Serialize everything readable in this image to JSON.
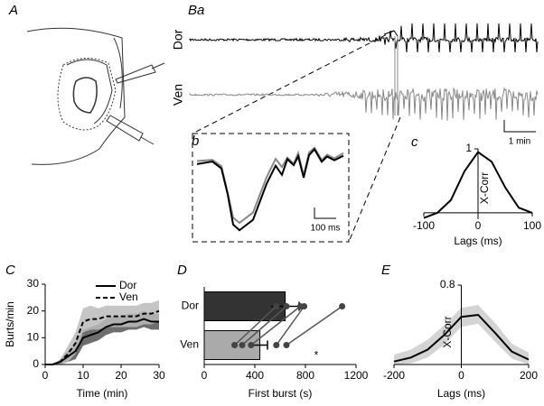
{
  "labels": {
    "panel_a": "A",
    "panel_ba": "Ba",
    "dor": "Dor",
    "ven": "Ven",
    "scale_min": "1 min",
    "panel_b": "b",
    "scale_ms": "100 ms"
  },
  "chart_data": [
    {
      "type": "line",
      "panel": "c",
      "x_label": "Lags (ms)",
      "y_label": "X-Corr",
      "x": [
        -100,
        -75,
        -50,
        -25,
        0,
        25,
        50,
        75,
        100
      ],
      "series": [
        {
          "color": "#000000",
          "values": [
            -0.08,
            0.0,
            0.2,
            0.65,
            0.95,
            0.8,
            0.4,
            0.08,
            0.0
          ]
        }
      ],
      "xlim": [
        -100,
        100
      ],
      "xticks": [
        -100,
        0,
        100
      ],
      "ylim": [
        -0.1,
        1
      ],
      "yticks": [
        1
      ]
    },
    {
      "type": "line",
      "panel": "C",
      "x_label": "Time (min)",
      "y_label": "Burts/min",
      "x": [
        0,
        2,
        4,
        6,
        8,
        10,
        12,
        14,
        16,
        18,
        20,
        22,
        24,
        26,
        28,
        30
      ],
      "series": [
        {
          "name": "Dor",
          "color": "#000000",
          "band_color": "#555555",
          "dash": false,
          "values": [
            0,
            0,
            1,
            3,
            5,
            10,
            11,
            12,
            14,
            15,
            15,
            16,
            16,
            17,
            16,
            16
          ],
          "lower": [
            0,
            0,
            0,
            1,
            2,
            7,
            8,
            9,
            11,
            12,
            12,
            13,
            13,
            14,
            13,
            13
          ],
          "upper": [
            0,
            0,
            2,
            5,
            8,
            13,
            14,
            15,
            17,
            18,
            18,
            19,
            19,
            20,
            19,
            19
          ]
        },
        {
          "name": "Ven",
          "color": "#000000",
          "band_color": "#bbbbbb",
          "dash": true,
          "values": [
            0,
            0,
            1,
            4,
            8,
            16,
            17,
            17,
            18,
            18,
            18,
            18,
            18,
            19,
            19,
            20
          ],
          "lower": [
            0,
            0,
            0,
            1,
            4,
            12,
            13,
            13,
            14,
            14,
            14,
            14,
            14,
            15,
            15,
            16
          ],
          "upper": [
            0,
            0,
            2,
            7,
            12,
            21,
            22,
            21,
            22,
            22,
            22,
            22,
            22,
            23,
            23,
            24
          ]
        }
      ],
      "xlim": [
        0,
        30
      ],
      "xticks": [
        0,
        10,
        20,
        30
      ],
      "ylim": [
        0,
        30
      ],
      "yticks": [
        0,
        10,
        20,
        30
      ],
      "legend": "upper right"
    },
    {
      "type": "hbar",
      "panel": "D",
      "x_label": "First burst (s)",
      "categories": [
        "Dor",
        "Ven"
      ],
      "values": [
        640,
        440
      ],
      "errors": [
        110,
        60
      ],
      "colors": [
        "#333333",
        "#aaaaaa"
      ],
      "points": [
        [
          570,
          650,
          760,
          790,
          1090
        ],
        [
          240,
          300,
          370,
          570,
          650
        ]
      ],
      "annotation": "*",
      "xlim": [
        0,
        1200
      ],
      "xticks": [
        0,
        400,
        800,
        1200
      ]
    },
    {
      "type": "line",
      "panel": "E",
      "x_label": "Lags (ms)",
      "y_label": "X-Corr",
      "x": [
        -200,
        -150,
        -100,
        -50,
        0,
        50,
        100,
        150,
        200
      ],
      "series": [
        {
          "color": "#000000",
          "band_color": "#cccccc",
          "values": [
            0.03,
            0.07,
            0.15,
            0.3,
            0.48,
            0.5,
            0.32,
            0.13,
            0.05
          ],
          "lower": [
            0.0,
            0.01,
            0.07,
            0.2,
            0.38,
            0.41,
            0.23,
            0.06,
            0.0
          ],
          "upper": [
            0.1,
            0.15,
            0.25,
            0.4,
            0.57,
            0.6,
            0.42,
            0.21,
            0.12
          ]
        }
      ],
      "xlim": [
        -200,
        200
      ],
      "xticks": [
        -200,
        0,
        200
      ],
      "ylim": [
        0,
        0.8
      ],
      "yticks": [
        0.8
      ]
    }
  ]
}
